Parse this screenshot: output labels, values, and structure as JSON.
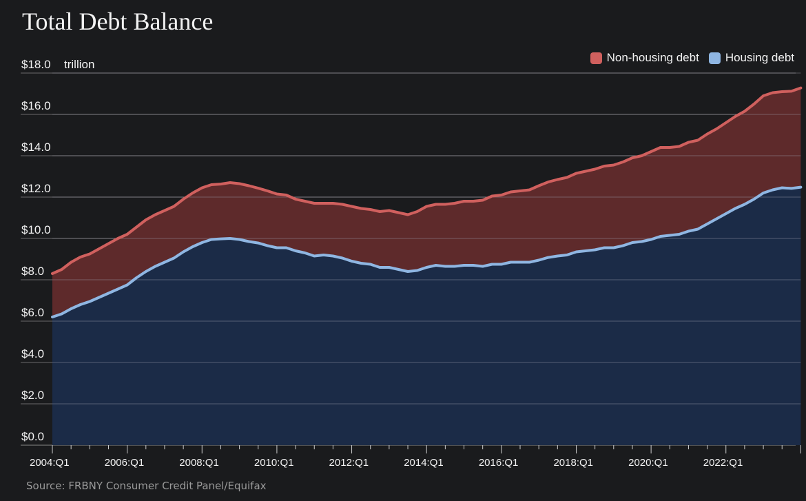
{
  "title": "Total Debt Balance",
  "source": "Source: FRBNY Consumer Credit Panel/Equifax",
  "unit_label": "trillion",
  "colors": {
    "background": "#1a1b1d",
    "non_housing_line": "#d0605e",
    "non_housing_fill": "#5e2a2b",
    "housing_line": "#8fb6e2",
    "housing_fill": "#1b2b47",
    "grid": "#6a6a6a"
  },
  "chart_data": {
    "type": "area",
    "title": "Total Debt Balance",
    "ylabel": "trillion",
    "ylim": [
      0,
      18
    ],
    "y_ticks": [
      "$0.0",
      "$2.0",
      "$4.0",
      "$6.0",
      "$8.0",
      "$10.0",
      "$12.0",
      "$14.0",
      "$16.0",
      "$18.0"
    ],
    "x_ticks": [
      "2004:Q1",
      "2006:Q1",
      "2008:Q1",
      "2010:Q1",
      "2012:Q1",
      "2014:Q1",
      "2016:Q1",
      "2018:Q1",
      "2020:Q1",
      "2022:Q1"
    ],
    "grid": true,
    "legend_position": "top-right",
    "stacked": true,
    "series": [
      {
        "name": "Housing debt",
        "color": "#8fb6e2",
        "values": [
          6.2,
          6.35,
          6.6,
          6.8,
          6.95,
          7.15,
          7.35,
          7.55,
          7.75,
          8.1,
          8.4,
          8.65,
          8.85,
          9.05,
          9.35,
          9.6,
          9.8,
          9.95,
          9.98,
          10.0,
          9.95,
          9.85,
          9.78,
          9.65,
          9.55,
          9.55,
          9.4,
          9.3,
          9.15,
          9.2,
          9.15,
          9.05,
          8.9,
          8.8,
          8.75,
          8.6,
          8.6,
          8.5,
          8.4,
          8.45,
          8.6,
          8.7,
          8.65,
          8.65,
          8.7,
          8.7,
          8.65,
          8.75,
          8.75,
          8.85,
          8.85,
          8.85,
          8.95,
          9.08,
          9.15,
          9.2,
          9.35,
          9.4,
          9.45,
          9.55,
          9.55,
          9.65,
          9.8,
          9.85,
          9.95,
          10.1,
          10.15,
          10.2,
          10.35,
          10.45,
          10.7,
          10.95,
          11.2,
          11.45,
          11.65,
          11.9,
          12.2,
          12.35,
          12.45,
          12.42,
          12.48
        ]
      },
      {
        "name": "Non-housing debt",
        "color": "#d0605e",
        "values": [
          2.1,
          2.15,
          2.25,
          2.3,
          2.3,
          2.35,
          2.4,
          2.45,
          2.45,
          2.45,
          2.5,
          2.5,
          2.5,
          2.5,
          2.55,
          2.6,
          2.65,
          2.65,
          2.65,
          2.7,
          2.7,
          2.7,
          2.65,
          2.65,
          2.6,
          2.55,
          2.5,
          2.5,
          2.55,
          2.5,
          2.55,
          2.6,
          2.65,
          2.65,
          2.65,
          2.7,
          2.75,
          2.75,
          2.75,
          2.85,
          2.95,
          2.95,
          3.0,
          3.05,
          3.1,
          3.1,
          3.2,
          3.3,
          3.35,
          3.4,
          3.45,
          3.5,
          3.6,
          3.65,
          3.7,
          3.75,
          3.8,
          3.85,
          3.9,
          3.95,
          4.0,
          4.05,
          4.1,
          4.15,
          4.25,
          4.3,
          4.25,
          4.25,
          4.3,
          4.3,
          4.35,
          4.35,
          4.4,
          4.45,
          4.5,
          4.6,
          4.7,
          4.7,
          4.65,
          4.7,
          4.8
        ]
      }
    ]
  }
}
